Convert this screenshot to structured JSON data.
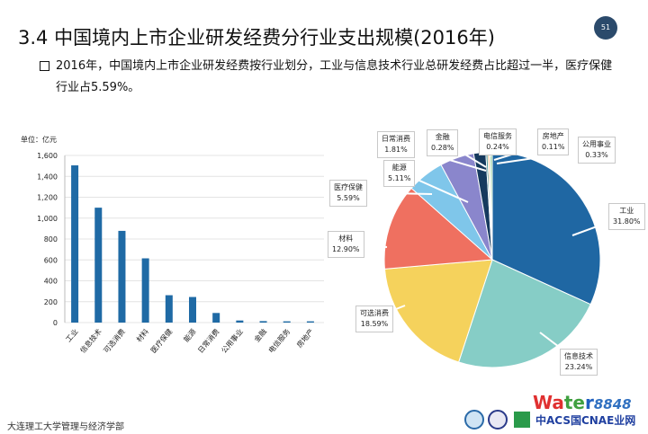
{
  "slide": {
    "title": "3.4  中国境内上市企业研发经费分行业支出规模(2016年)",
    "page_number": "51",
    "bullet_text": "2016年，中国境内上市企业研发经费按行业划分，工业与信息技术行业总研发经费占比超过一半，医疗保健行业占5.59%。",
    "footer": "大连理工大学管理与经济学部",
    "watermark": "water8848.com"
  },
  "chart_data": [
    {
      "type": "bar",
      "ylabel": "单位：亿元",
      "categories": [
        "工业",
        "信息技术",
        "可选消费",
        "材料",
        "医疗保健",
        "能源",
        "日常消费",
        "公用事业",
        "金融",
        "电信服务",
        "房地产"
      ],
      "values": [
        1505,
        1100,
        878,
        615,
        262,
        245,
        92,
        20,
        14,
        12,
        12
      ],
      "ylim": [
        0,
        1600
      ],
      "yticks": [
        "0",
        "200",
        "400",
        "600",
        "800",
        "1,000",
        "1,200",
        "1,400",
        "1,600"
      ],
      "grid": true,
      "color": "#1f6aa5"
    },
    {
      "type": "pie",
      "slices": [
        {
          "label": "工业",
          "value": 31.8,
          "text": "31.80%",
          "color": "#1f67a3"
        },
        {
          "label": "信息技术",
          "value": 23.24,
          "text": "23.24%",
          "color": "#86cdc6"
        },
        {
          "label": "可选消费",
          "value": 18.59,
          "text": "18.59%",
          "color": "#f5d25c"
        },
        {
          "label": "材料",
          "value": 12.9,
          "text": "12.90%",
          "color": "#ef7060"
        },
        {
          "label": "医疗保健",
          "value": 5.59,
          "text": "5.59%",
          "color": "#7fc6ea"
        },
        {
          "label": "能源",
          "value": 5.11,
          "text": "5.11%",
          "color": "#8a86cc"
        },
        {
          "label": "日常消费",
          "value": 1.81,
          "text": "1.81%",
          "color": "#163a5e"
        },
        {
          "label": "金融",
          "value": 0.28,
          "text": "0.28%",
          "color": "#3a8a8a"
        },
        {
          "label": "电信服务",
          "value": 0.24,
          "text": "0.24%",
          "color": "#f0a050"
        },
        {
          "label": "房地产",
          "value": 0.11,
          "text": "0.11%",
          "color": "#c04040"
        },
        {
          "label": "公用事业",
          "value": 0.33,
          "text": "0.33%",
          "color": "#9ad0a0"
        }
      ]
    }
  ]
}
